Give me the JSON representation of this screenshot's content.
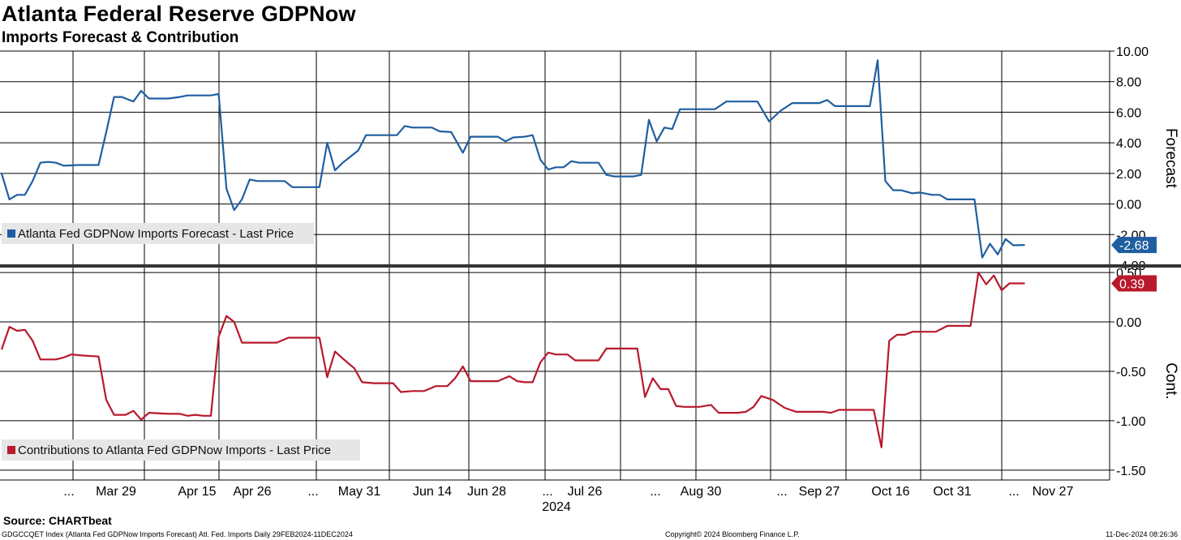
{
  "header": {
    "title": "Atlanta Federal Reserve GDPNow",
    "subtitle": "Imports Forecast & Contribution"
  },
  "footer": {
    "source": "Source: CHARTbeat",
    "ticker": "GDGCCQET Index (Atlanta Fed GDPNow Imports Forecast) Atl. Fed. Imports  Daily 29FEB2024-11DEC2024",
    "copyright": "Copyright© 2024 Bloomberg Finance L.P.",
    "timestamp": "11-Dec-2024 08:26:36"
  },
  "colors": {
    "forecast": "#1f5fa0",
    "contribution": "#b8192b",
    "grid": "#000000",
    "legend_bg": "#e6e6e6"
  },
  "chart_data": [
    {
      "type": "line",
      "title": "",
      "ylabel": "Forecast",
      "ylim": [
        -4.0,
        10.0
      ],
      "y_ticks": [
        "10.00",
        "8.00",
        "6.00",
        "4.00",
        "2.00",
        "0.00",
        "-2.00",
        "-4.00"
      ],
      "last_value_label": "-2.68",
      "grid": true,
      "legend_position": "bottom-left",
      "series": [
        {
          "name": "Atlanta Fed GDPNow Imports Forecast - Last Price",
          "points": [
            [
              "2024-02-29",
              2.0
            ],
            [
              "2024-03-02",
              0.3
            ],
            [
              "2024-03-04",
              0.6
            ],
            [
              "2024-03-06",
              0.6
            ],
            [
              "2024-03-08",
              1.5
            ],
            [
              "2024-03-10",
              2.7
            ],
            [
              "2024-03-12",
              2.75
            ],
            [
              "2024-03-14",
              2.7
            ],
            [
              "2024-03-16",
              2.5
            ],
            [
              "2024-03-20",
              2.55
            ],
            [
              "2024-03-25",
              2.55
            ],
            [
              "2024-03-27",
              4.7
            ],
            [
              "2024-03-29",
              7.0
            ],
            [
              "2024-03-31",
              7.0
            ],
            [
              "2024-04-03",
              6.7
            ],
            [
              "2024-04-05",
              7.4
            ],
            [
              "2024-04-07",
              6.9
            ],
            [
              "2024-04-12",
              6.9
            ],
            [
              "2024-04-15",
              7.0
            ],
            [
              "2024-04-17",
              7.1
            ],
            [
              "2024-04-23",
              7.1
            ],
            [
              "2024-04-25",
              7.2
            ],
            [
              "2024-04-27",
              1.0
            ],
            [
              "2024-04-29",
              -0.4
            ],
            [
              "2024-05-01",
              0.3
            ],
            [
              "2024-05-03",
              1.6
            ],
            [
              "2024-05-05",
              1.5
            ],
            [
              "2024-05-12",
              1.5
            ],
            [
              "2024-05-14",
              1.1
            ],
            [
              "2024-05-21",
              1.1
            ],
            [
              "2024-05-23",
              4.0
            ],
            [
              "2024-05-25",
              2.2
            ],
            [
              "2024-05-27",
              2.7
            ],
            [
              "2024-05-29",
              3.1
            ],
            [
              "2024-05-31",
              3.5
            ],
            [
              "2024-06-02",
              4.5
            ],
            [
              "2024-06-05",
              4.5
            ],
            [
              "2024-06-10",
              4.5
            ],
            [
              "2024-06-12",
              5.1
            ],
            [
              "2024-06-14",
              5.0
            ],
            [
              "2024-06-19",
              5.0
            ],
            [
              "2024-06-21",
              4.75
            ],
            [
              "2024-06-24",
              4.7
            ],
            [
              "2024-06-27",
              3.35
            ],
            [
              "2024-06-29",
              4.4
            ],
            [
              "2024-07-01",
              4.4
            ],
            [
              "2024-07-06",
              4.4
            ],
            [
              "2024-07-08",
              4.1
            ],
            [
              "2024-07-10",
              4.35
            ],
            [
              "2024-07-13",
              4.4
            ],
            [
              "2024-07-15",
              4.5
            ],
            [
              "2024-07-17",
              2.9
            ],
            [
              "2024-07-19",
              2.25
            ],
            [
              "2024-07-21",
              2.4
            ],
            [
              "2024-07-23",
              2.4
            ],
            [
              "2024-07-25",
              2.8
            ],
            [
              "2024-07-27",
              2.7
            ],
            [
              "2024-08-01",
              2.7
            ],
            [
              "2024-08-03",
              1.9
            ],
            [
              "2024-08-05",
              1.8
            ],
            [
              "2024-08-10",
              1.8
            ],
            [
              "2024-08-12",
              1.9
            ],
            [
              "2024-08-14",
              5.5
            ],
            [
              "2024-08-16",
              4.1
            ],
            [
              "2024-08-18",
              5.0
            ],
            [
              "2024-08-20",
              4.9
            ],
            [
              "2024-08-22",
              6.2
            ],
            [
              "2024-08-24",
              6.2
            ],
            [
              "2024-08-31",
              6.2
            ],
            [
              "2024-09-03",
              6.7
            ],
            [
              "2024-09-05",
              6.7
            ],
            [
              "2024-09-11",
              6.7
            ],
            [
              "2024-09-14",
              5.4
            ],
            [
              "2024-09-17",
              6.1
            ],
            [
              "2024-09-20",
              6.6
            ],
            [
              "2024-09-23",
              6.6
            ],
            [
              "2024-09-27",
              6.6
            ],
            [
              "2024-09-29",
              6.8
            ],
            [
              "2024-10-01",
              6.4
            ],
            [
              "2024-10-04",
              6.4
            ],
            [
              "2024-10-10",
              6.4
            ],
            [
              "2024-10-12",
              9.4
            ],
            [
              "2024-10-14",
              1.5
            ],
            [
              "2024-10-16",
              0.9
            ],
            [
              "2024-10-18",
              0.9
            ],
            [
              "2024-10-21",
              0.7
            ],
            [
              "2024-10-23",
              0.75
            ],
            [
              "2024-10-26",
              0.6
            ],
            [
              "2024-10-28",
              0.6
            ],
            [
              "2024-10-30",
              0.3
            ],
            [
              "2024-11-01",
              0.3
            ],
            [
              "2024-11-04",
              0.3
            ],
            [
              "2024-11-06",
              0.3
            ],
            [
              "2024-11-08",
              -3.5
            ],
            [
              "2024-11-10",
              -2.6
            ],
            [
              "2024-11-12",
              -3.3
            ],
            [
              "2024-11-14",
              -2.3
            ],
            [
              "2024-11-16",
              -2.7
            ],
            [
              "2024-11-19",
              -2.68
            ]
          ]
        }
      ]
    },
    {
      "type": "line",
      "title": "",
      "ylabel": "Cont.",
      "ylim": [
        -1.6,
        0.55
      ],
      "y_ticks": [
        "0.50",
        "0.00",
        "-0.50",
        "-1.00",
        "-1.50"
      ],
      "last_value_label": "0.39",
      "grid": true,
      "legend_position": "bottom-left",
      "x_ticks": [
        "...",
        "Mar 29",
        "Apr 15",
        "Apr 26",
        "...",
        "May 31",
        "Jun 14",
        "Jun 28",
        "...",
        "Jul 26",
        "...",
        "Aug 30",
        "...",
        "Sep 27",
        "Oct 16",
        "Oct 31",
        "...",
        "Nov 27"
      ],
      "x_year_label": "2024",
      "series": [
        {
          "name": "Contributions to Atlanta Fed GDPNow Imports - Last Price",
          "points": [
            [
              "2024-02-29",
              -0.28
            ],
            [
              "2024-03-02",
              -0.05
            ],
            [
              "2024-03-04",
              -0.09
            ],
            [
              "2024-03-06",
              -0.08
            ],
            [
              "2024-03-08",
              -0.19
            ],
            [
              "2024-03-10",
              -0.38
            ],
            [
              "2024-03-14",
              -0.38
            ],
            [
              "2024-03-16",
              -0.36
            ],
            [
              "2024-03-18",
              -0.33
            ],
            [
              "2024-03-21",
              -0.34
            ],
            [
              "2024-03-25",
              -0.35
            ],
            [
              "2024-03-27",
              -0.79
            ],
            [
              "2024-03-29",
              -0.94
            ],
            [
              "2024-04-01",
              -0.94
            ],
            [
              "2024-04-03",
              -0.9
            ],
            [
              "2024-04-05",
              -0.99
            ],
            [
              "2024-04-07",
              -0.92
            ],
            [
              "2024-04-12",
              -0.93
            ],
            [
              "2024-04-15",
              -0.93
            ],
            [
              "2024-04-17",
              -0.95
            ],
            [
              "2024-04-19",
              -0.94
            ],
            [
              "2024-04-21",
              -0.95
            ],
            [
              "2024-04-23",
              -0.95
            ],
            [
              "2024-04-25",
              -0.15
            ],
            [
              "2024-04-27",
              0.06
            ],
            [
              "2024-04-29",
              0.0
            ],
            [
              "2024-05-01",
              -0.21
            ],
            [
              "2024-05-03",
              -0.21
            ],
            [
              "2024-05-10",
              -0.21
            ],
            [
              "2024-05-13",
              -0.16
            ],
            [
              "2024-05-15",
              -0.16
            ],
            [
              "2024-05-21",
              -0.16
            ],
            [
              "2024-05-23",
              -0.56
            ],
            [
              "2024-05-25",
              -0.3
            ],
            [
              "2024-05-27",
              -0.37
            ],
            [
              "2024-05-30",
              -0.47
            ],
            [
              "2024-06-01",
              -0.61
            ],
            [
              "2024-06-04",
              -0.62
            ],
            [
              "2024-06-09",
              -0.62
            ],
            [
              "2024-06-11",
              -0.71
            ],
            [
              "2024-06-14",
              -0.7
            ],
            [
              "2024-06-17",
              -0.7
            ],
            [
              "2024-06-20",
              -0.65
            ],
            [
              "2024-06-23",
              -0.65
            ],
            [
              "2024-06-25",
              -0.57
            ],
            [
              "2024-06-27",
              -0.45
            ],
            [
              "2024-06-29",
              -0.6
            ],
            [
              "2024-07-03",
              -0.6
            ],
            [
              "2024-07-06",
              -0.6
            ],
            [
              "2024-07-09",
              -0.55
            ],
            [
              "2024-07-11",
              -0.6
            ],
            [
              "2024-07-13",
              -0.61
            ],
            [
              "2024-07-15",
              -0.61
            ],
            [
              "2024-07-17",
              -0.41
            ],
            [
              "2024-07-19",
              -0.31
            ],
            [
              "2024-07-21",
              -0.33
            ],
            [
              "2024-07-24",
              -0.33
            ],
            [
              "2024-07-26",
              -0.39
            ],
            [
              "2024-07-29",
              -0.39
            ],
            [
              "2024-08-01",
              -0.39
            ],
            [
              "2024-08-03",
              -0.27
            ],
            [
              "2024-08-05",
              -0.27
            ],
            [
              "2024-08-11",
              -0.27
            ],
            [
              "2024-08-13",
              -0.76
            ],
            [
              "2024-08-15",
              -0.57
            ],
            [
              "2024-08-17",
              -0.68
            ],
            [
              "2024-08-19",
              -0.68
            ],
            [
              "2024-08-21",
              -0.85
            ],
            [
              "2024-08-23",
              -0.86
            ],
            [
              "2024-08-27",
              -0.86
            ],
            [
              "2024-08-30",
              -0.84
            ],
            [
              "2024-09-01",
              -0.92
            ],
            [
              "2024-09-03",
              -0.92
            ],
            [
              "2024-09-06",
              -0.92
            ],
            [
              "2024-09-08",
              -0.91
            ],
            [
              "2024-09-10",
              -0.86
            ],
            [
              "2024-09-12",
              -0.75
            ],
            [
              "2024-09-15",
              -0.79
            ],
            [
              "2024-09-18",
              -0.87
            ],
            [
              "2024-09-21",
              -0.91
            ],
            [
              "2024-09-25",
              -0.91
            ],
            [
              "2024-09-28",
              -0.91
            ],
            [
              "2024-09-30",
              -0.92
            ],
            [
              "2024-10-02",
              -0.89
            ],
            [
              "2024-10-05",
              -0.89
            ],
            [
              "2024-10-09",
              -0.89
            ],
            [
              "2024-10-11",
              -0.89
            ],
            [
              "2024-10-13",
              -1.27
            ],
            [
              "2024-10-15",
              -0.19
            ],
            [
              "2024-10-17",
              -0.13
            ],
            [
              "2024-10-19",
              -0.13
            ],
            [
              "2024-10-21",
              -0.1
            ],
            [
              "2024-10-23",
              -0.1
            ],
            [
              "2024-10-27",
              -0.1
            ],
            [
              "2024-10-30",
              -0.04
            ],
            [
              "2024-11-01",
              -0.04
            ],
            [
              "2024-11-05",
              -0.04
            ],
            [
              "2024-11-07",
              0.5
            ],
            [
              "2024-11-09",
              0.38
            ],
            [
              "2024-11-11",
              0.47
            ],
            [
              "2024-11-13",
              0.32
            ],
            [
              "2024-11-15",
              0.39
            ],
            [
              "2024-11-19",
              0.39
            ]
          ]
        }
      ]
    }
  ]
}
